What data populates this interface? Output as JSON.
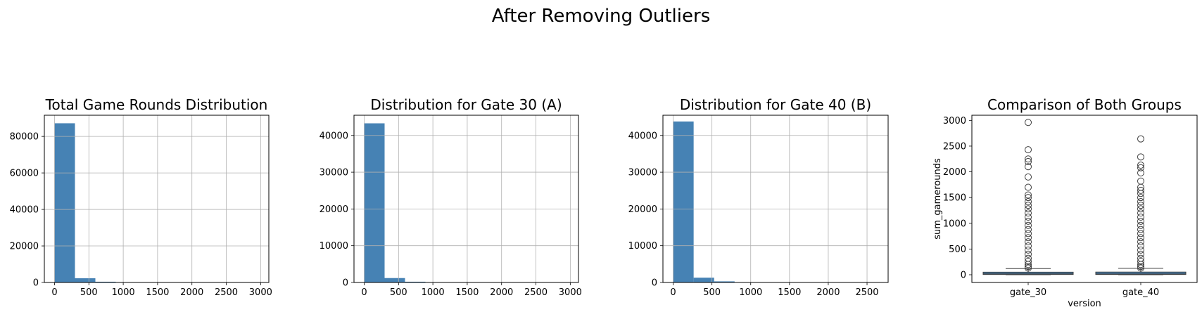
{
  "suptitle": "After Removing Outliers",
  "chart_data": [
    {
      "type": "histogram",
      "title": "Total Game Rounds Distribution",
      "bin_edges": [
        0,
        297.1,
        594.2,
        891.3,
        1188.4,
        1485.5,
        1782.6,
        2079.7,
        2376.8,
        2673.9,
        2971
      ],
      "counts": [
        87200,
        2300,
        400,
        120,
        40,
        15,
        8,
        5,
        3,
        1
      ],
      "xlim": [
        -148.55,
        3119.55
      ],
      "ylim": [
        0,
        91600
      ],
      "xticks": [
        0,
        500,
        1000,
        1500,
        2000,
        2500,
        3000
      ],
      "xtick_labels": [
        "0",
        "500",
        "1000",
        "1500",
        "2000",
        "2500",
        "3000"
      ],
      "yticks": [
        0,
        20000,
        40000,
        60000,
        80000
      ],
      "ytick_labels": [
        "0",
        "20000",
        "40000",
        "60000",
        "80000"
      ],
      "color": "#4682b4",
      "grid": true
    },
    {
      "type": "histogram",
      "title": "Distribution for Gate 30 (A)",
      "bin_edges": [
        0,
        297.1,
        594.2,
        891.3,
        1188.4,
        1485.5,
        1782.6,
        2079.7,
        2376.8,
        2673.9,
        2971
      ],
      "counts": [
        43300,
        1200,
        200,
        60,
        20,
        8,
        4,
        2,
        1,
        1
      ],
      "xlim": [
        -148.55,
        3119.55
      ],
      "ylim": [
        0,
        45500
      ],
      "xticks": [
        0,
        500,
        1000,
        1500,
        2000,
        2500,
        3000
      ],
      "xtick_labels": [
        "0",
        "500",
        "1000",
        "1500",
        "2000",
        "2500",
        "3000"
      ],
      "yticks": [
        0,
        10000,
        20000,
        30000,
        40000
      ],
      "ytick_labels": [
        "0",
        "10000",
        "20000",
        "30000",
        "40000"
      ],
      "color": "#4682b4",
      "grid": true
    },
    {
      "type": "histogram",
      "title": "Distribution for Gate 40 (B)",
      "bin_edges": [
        0,
        264,
        528,
        792,
        1056,
        1320,
        1584,
        1848,
        2112,
        2376,
        2640
      ],
      "counts": [
        43800,
        1300,
        300,
        90,
        30,
        12,
        6,
        3,
        2,
        1
      ],
      "xlim": [
        -132,
        2772
      ],
      "ylim": [
        0,
        45500
      ],
      "xticks": [
        0,
        500,
        1000,
        1500,
        2000,
        2500
      ],
      "xtick_labels": [
        "0",
        "500",
        "1000",
        "1500",
        "2000",
        "2500"
      ],
      "yticks": [
        0,
        10000,
        20000,
        30000,
        40000
      ],
      "ytick_labels": [
        "0",
        "10000",
        "20000",
        "30000",
        "40000"
      ],
      "color": "#4682b4",
      "grid": true
    },
    {
      "type": "box",
      "title": "Comparison of Both Groups",
      "xlabel": "version",
      "ylabel": "sum_gamerounds",
      "categories": [
        "gate_30",
        "gate_40"
      ],
      "ylim": [
        -150,
        3100
      ],
      "yticks": [
        0,
        500,
        1000,
        1500,
        2000,
        2500,
        3000
      ],
      "ytick_labels": [
        "0",
        "500",
        "1000",
        "1500",
        "2000",
        "2500",
        "3000"
      ],
      "color": "#4682b4",
      "boxes": [
        {
          "name": "gate_30",
          "q1": 5,
          "median": 17,
          "q3": 50,
          "whisker_low": 0,
          "whisker_high": 120,
          "fliers": [
            130,
            160,
            200,
            260,
            320,
            400,
            480,
            560,
            640,
            720,
            800,
            880,
            960,
            1040,
            1120,
            1200,
            1280,
            1350,
            1420,
            1500,
            1550,
            1700,
            1900,
            2100,
            2200,
            2250,
            2430,
            2960
          ]
        },
        {
          "name": "gate_40",
          "q1": 5,
          "median": 16,
          "q3": 52,
          "whisker_low": 0,
          "whisker_high": 125,
          "fliers": [
            130,
            160,
            200,
            260,
            320,
            400,
            480,
            560,
            640,
            720,
            800,
            880,
            960,
            1040,
            1120,
            1200,
            1280,
            1350,
            1420,
            1500,
            1580,
            1640,
            1700,
            1820,
            1980,
            2080,
            2130,
            2290,
            2640
          ]
        }
      ]
    }
  ]
}
